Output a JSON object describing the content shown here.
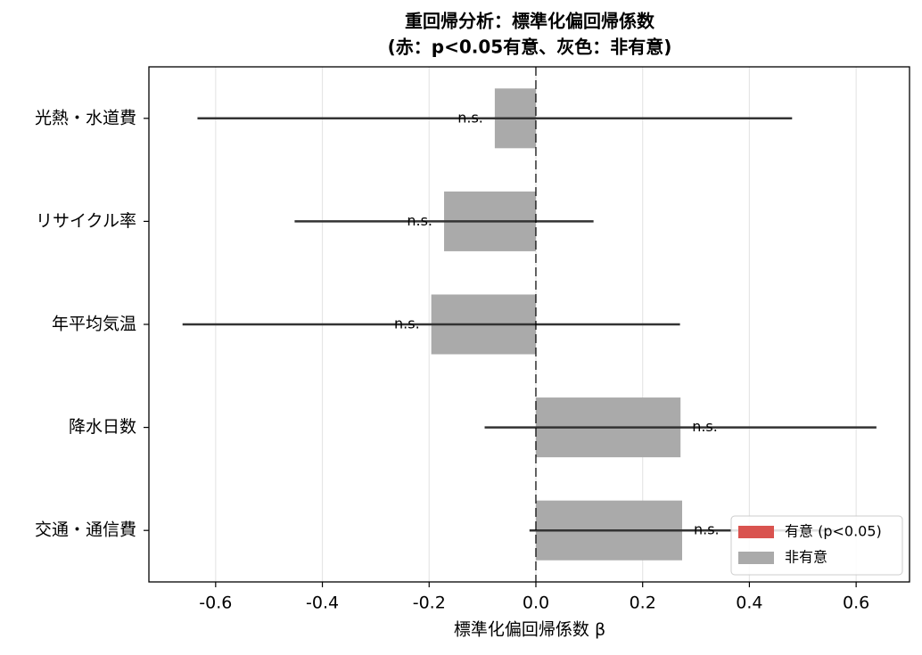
{
  "chart_data": {
    "type": "hbar-error",
    "title": "重回帰分析：標準化偏回帰係数",
    "subtitle": "(赤：p<0.05有意、灰色：非有意)",
    "x_label": "標準化偏回帰係数 β",
    "categories": [
      "光熱・水道費",
      "リサイクル率",
      "年平均気温",
      "降水日数",
      "交通・通信費"
    ],
    "values": [
      -0.077,
      -0.172,
      -0.196,
      0.271,
      0.274
    ],
    "errors": [
      0.557,
      0.28,
      0.466,
      0.367,
      0.286
    ],
    "significant": [
      false,
      false,
      false,
      false,
      false
    ],
    "annotations": [
      "n.s.",
      "n.s.",
      "n.s.",
      "n.s.",
      "n.s."
    ],
    "legend": [
      {
        "label": "有意 (p<0.05)",
        "color": "#d9534f"
      },
      {
        "label": "非有意",
        "color": "#aaaaaa"
      }
    ],
    "legend_position": "lower right",
    "xlim": [
      -0.725,
      0.7
    ],
    "xticks": [
      -0.6,
      -0.4,
      -0.2,
      {
        "value": 0,
        "label": "0.0"
      },
      0.2,
      0.4,
      0.6
    ],
    "grid": true
  }
}
